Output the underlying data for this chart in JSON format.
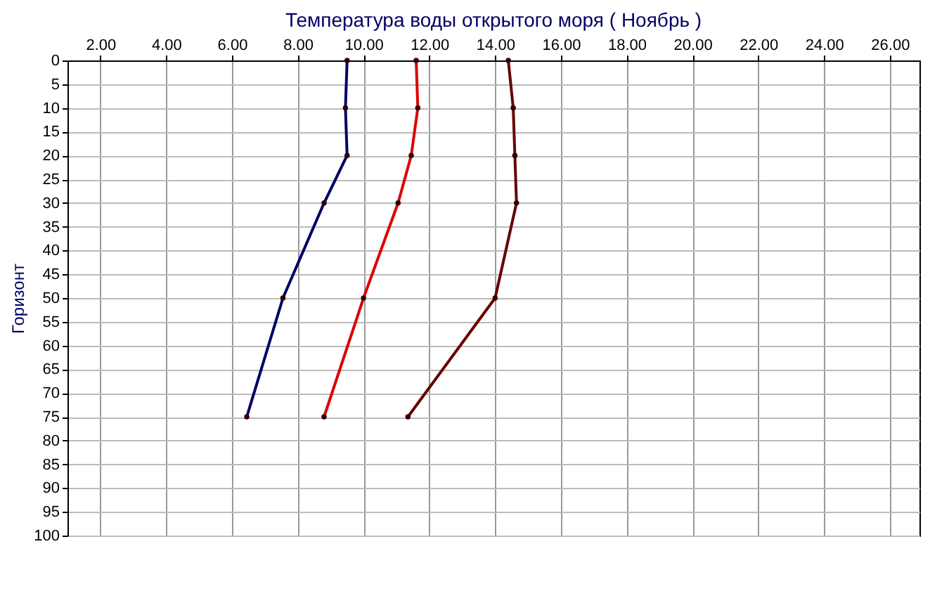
{
  "chart_data": {
    "type": "line",
    "title": "Температура воды открытого моря     ( Ноябрь )",
    "ylabel": "Горизонт",
    "series": [
      {
        "color": "#000066",
        "x": [
          9.5,
          9.45,
          9.5,
          8.8,
          7.55,
          6.45
        ],
        "values": [
          0,
          10,
          20,
          30,
          50,
          75
        ]
      },
      {
        "color": "#dd0000",
        "x": [
          11.6,
          11.65,
          11.45,
          11.05,
          10.0,
          8.8
        ],
        "values": [
          0,
          10,
          20,
          30,
          50,
          75
        ]
      },
      {
        "color": "#660000",
        "x": [
          14.4,
          14.55,
          14.6,
          14.65,
          14.0,
          11.35
        ],
        "values": [
          0,
          10,
          20,
          30,
          50,
          75
        ]
      }
    ],
    "xlim": [
      1.0,
      26.9
    ],
    "xticks": [
      {
        "value": 2,
        "label": "2.00"
      },
      {
        "value": 4,
        "label": "4.00"
      },
      {
        "value": 6,
        "label": "6.00"
      },
      {
        "value": 8,
        "label": "8.00"
      },
      {
        "value": 10,
        "label": "10.00"
      },
      {
        "value": 12,
        "label": "12.00"
      },
      {
        "value": 14,
        "label": "14.00"
      },
      {
        "value": 16,
        "label": "16.00"
      },
      {
        "value": 18,
        "label": "18.00"
      },
      {
        "value": 20,
        "label": "20.00"
      },
      {
        "value": 22,
        "label": "22.00"
      },
      {
        "value": 24,
        "label": "24.00"
      },
      {
        "value": 26,
        "label": "26.00"
      }
    ],
    "ylim": [
      100,
      0
    ],
    "yticks": [
      0,
      5,
      10,
      15,
      20,
      25,
      30,
      35,
      40,
      45,
      50,
      55,
      60,
      65,
      70,
      75,
      80,
      85,
      90,
      95,
      100
    ],
    "grid": true,
    "legend": false,
    "marker": "circle",
    "line_style": "solid"
  }
}
